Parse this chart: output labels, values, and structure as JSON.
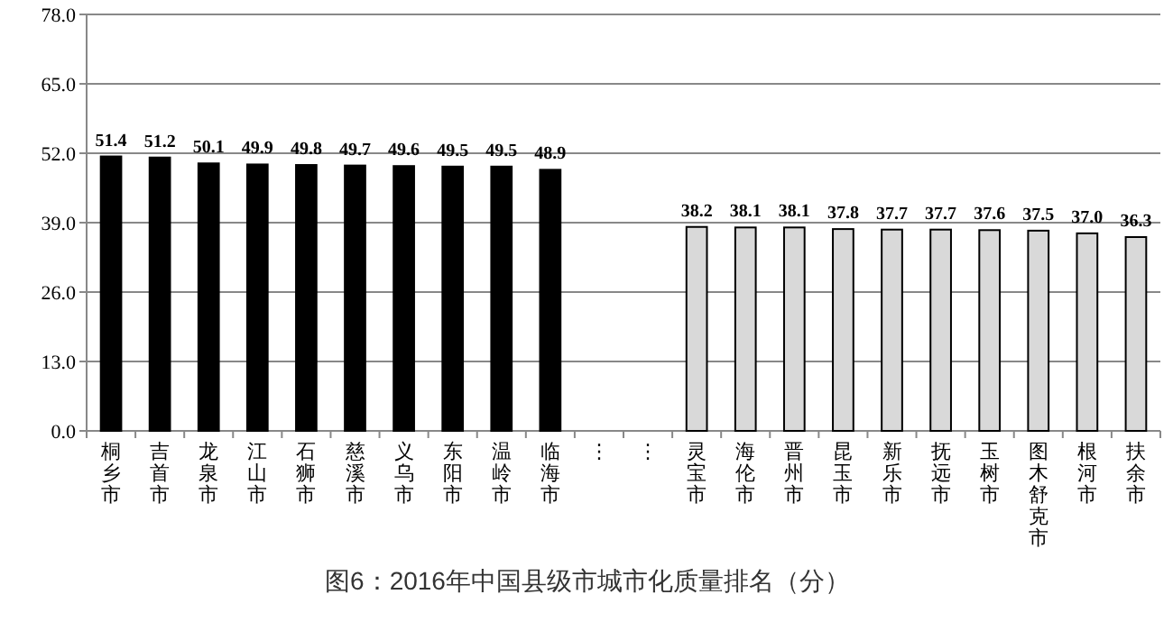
{
  "chart_data": {
    "type": "bar",
    "title": "图6：2016年中国县级市城市化质量排名（分）",
    "categories": [
      "桐乡市",
      "吉首市",
      "龙泉市",
      "江山市",
      "石狮市",
      "慈溪市",
      "义乌市",
      "东阳市",
      "温岭市",
      "临海市",
      "⋮",
      "⋮",
      "灵宝市",
      "海伦市",
      "晋州市",
      "昆玉市",
      "新乐市",
      "抚远市",
      "玉树市",
      "图木舒克市",
      "根河市",
      "扶余市"
    ],
    "values": [
      51.4,
      51.2,
      50.1,
      49.9,
      49.8,
      49.7,
      49.6,
      49.5,
      49.5,
      48.9,
      null,
      null,
      38.2,
      38.1,
      38.1,
      37.8,
      37.7,
      37.7,
      37.6,
      37.5,
      37.0,
      36.3
    ],
    "colors": [
      "#000000",
      "#000000",
      "#000000",
      "#000000",
      "#000000",
      "#000000",
      "#000000",
      "#000000",
      "#000000",
      "#000000",
      null,
      null,
      "#d9d9d9",
      "#d9d9d9",
      "#d9d9d9",
      "#d9d9d9",
      "#d9d9d9",
      "#d9d9d9",
      "#d9d9d9",
      "#d9d9d9",
      "#d9d9d9",
      "#d9d9d9"
    ],
    "ylim": [
      0,
      78
    ],
    "yticks": [
      {
        "value": 0,
        "label": "0.0"
      },
      {
        "value": 13,
        "label": "13.0"
      },
      {
        "value": 26,
        "label": "26.0"
      },
      {
        "value": 39,
        "label": "39.0"
      },
      {
        "value": 52,
        "label": "52.0"
      },
      {
        "value": 65,
        "label": "65.0"
      },
      {
        "value": 78,
        "label": "78.0"
      }
    ],
    "value_labels": [
      "51.4",
      "51.2",
      "50.1",
      "49.9",
      "49.8",
      "49.7",
      "49.6",
      "49.5",
      "49.5",
      "48.9",
      null,
      null,
      "38.2",
      "38.1",
      "38.1",
      "37.8",
      "37.7",
      "37.7",
      "37.6",
      "37.5",
      "37.0",
      "36.3"
    ],
    "grid": "y"
  }
}
